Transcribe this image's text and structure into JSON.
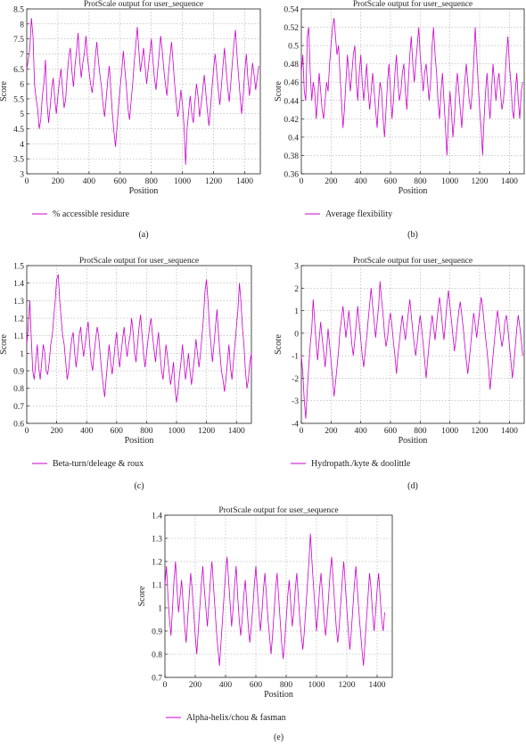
{
  "chart_data": [
    {
      "type": "line",
      "title": "ProtScale output for user_sequence",
      "xlabel": "Position",
      "ylabel": "Score",
      "xlim": [
        0,
        1500
      ],
      "ylim": [
        3,
        8.5
      ],
      "xticks": [
        "0",
        "200",
        "400",
        "600",
        "800",
        "1000",
        "1200",
        "1400"
      ],
      "yticks": [
        "3",
        "3.5",
        "4",
        "4.5",
        "5",
        "5.5",
        "6",
        "6.5",
        "7",
        "7.5",
        "8",
        "8.5"
      ],
      "grid": true,
      "legend": "% accessible residure",
      "caption": "(a)",
      "color": "#cc00cc",
      "series": [
        {
          "values_step": 10,
          "x_start": 0,
          "values": [
            6.5,
            6.8,
            7.2,
            8.2,
            7.6,
            6.0,
            5.5,
            5.2,
            4.5,
            4.8,
            5.6,
            6.0,
            6.8,
            5.4,
            4.7,
            5.2,
            5.8,
            6.2,
            5.5,
            5.0,
            5.6,
            6.1,
            6.5,
            5.8,
            5.2,
            5.5,
            6.3,
            6.9,
            7.2,
            6.4,
            5.9,
            6.6,
            7.1,
            7.7,
            6.8,
            6.2,
            6.7,
            7.0,
            7.6,
            6.9,
            6.4,
            6.0,
            5.7,
            6.2,
            6.9,
            7.4,
            6.8,
            6.3,
            5.9,
            5.3,
            4.9,
            5.5,
            6.1,
            6.6,
            5.8,
            5.0,
            4.4,
            3.9,
            4.6,
            5.3,
            5.9,
            6.4,
            7.1,
            6.5,
            5.9,
            5.2,
            4.8,
            5.4,
            6.0,
            6.7,
            7.3,
            7.9,
            7.1,
            6.4,
            6.8,
            7.2,
            6.6,
            6.0,
            6.5,
            7.0,
            7.5,
            6.8,
            6.2,
            5.8,
            6.4,
            7.0,
            7.6,
            7.1,
            6.5,
            6.0,
            5.6,
            6.3,
            6.9,
            7.4,
            6.7,
            6.0,
            5.4,
            4.9,
            5.2,
            5.8,
            5.3,
            4.6,
            3.3,
            4.5,
            5.1,
            5.6,
            5.0,
            4.7,
            5.4,
            6.0,
            5.6,
            4.9,
            5.3,
            5.8,
            6.3,
            5.7,
            5.1,
            4.6,
            5.2,
            5.9,
            6.5,
            7.0,
            6.4,
            5.8,
            5.3,
            5.9,
            6.6,
            7.2,
            6.5,
            5.9,
            5.4,
            6.0,
            6.7,
            7.3,
            7.8,
            7.0,
            6.3,
            5.6,
            5.0,
            5.6,
            6.4,
            7.0,
            6.2,
            5.6,
            6.1,
            6.7,
            6.3,
            5.8,
            6.2,
            6.6
          ]
        }
      ]
    },
    {
      "type": "line",
      "title": "ProtScale output for user_sequence",
      "xlabel": "Position",
      "ylabel": "Score",
      "xlim": [
        0,
        1500
      ],
      "ylim": [
        0.36,
        0.54
      ],
      "xticks": [
        "0",
        "200",
        "400",
        "600",
        "800",
        "1000",
        "1200",
        "1400"
      ],
      "yticks": [
        "0.36",
        "0.38",
        "0.4",
        "0.42",
        "0.44",
        "0.46",
        "0.48",
        "0.5",
        "0.52",
        "0.54"
      ],
      "grid": true,
      "legend": "Average flexibility",
      "caption": "(b)",
      "color": "#cc00cc",
      "series": [
        {
          "values_step": 10,
          "x_start": 0,
          "values": [
            0.47,
            0.49,
            0.45,
            0.44,
            0.51,
            0.52,
            0.47,
            0.44,
            0.46,
            0.45,
            0.42,
            0.44,
            0.47,
            0.45,
            0.43,
            0.42,
            0.44,
            0.46,
            0.45,
            0.48,
            0.5,
            0.52,
            0.53,
            0.51,
            0.49,
            0.5,
            0.47,
            0.44,
            0.41,
            0.43,
            0.46,
            0.49,
            0.47,
            0.45,
            0.47,
            0.49,
            0.5,
            0.46,
            0.44,
            0.47,
            0.49,
            0.46,
            0.44,
            0.46,
            0.48,
            0.45,
            0.43,
            0.45,
            0.47,
            0.45,
            0.43,
            0.41,
            0.44,
            0.46,
            0.45,
            0.42,
            0.4,
            0.43,
            0.46,
            0.48,
            0.45,
            0.42,
            0.44,
            0.47,
            0.49,
            0.46,
            0.44,
            0.45,
            0.47,
            0.48,
            0.45,
            0.43,
            0.46,
            0.49,
            0.51,
            0.48,
            0.46,
            0.48,
            0.5,
            0.52,
            0.49,
            0.47,
            0.45,
            0.47,
            0.48,
            0.46,
            0.44,
            0.46,
            0.5,
            0.52,
            0.49,
            0.47,
            0.44,
            0.42,
            0.45,
            0.47,
            0.44,
            0.41,
            0.38,
            0.42,
            0.45,
            0.43,
            0.4,
            0.42,
            0.45,
            0.47,
            0.45,
            0.43,
            0.41,
            0.44,
            0.46,
            0.48,
            0.46,
            0.44,
            0.43,
            0.45,
            0.48,
            0.52,
            0.49,
            0.46,
            0.43,
            0.41,
            0.38,
            0.42,
            0.45,
            0.47,
            0.44,
            0.42,
            0.45,
            0.48,
            0.46,
            0.44,
            0.46,
            0.47,
            0.45,
            0.43,
            0.44,
            0.46,
            0.49,
            0.51,
            0.48,
            0.46,
            0.43,
            0.42,
            0.45,
            0.47,
            0.44,
            0.42,
            0.45,
            0.46
          ]
        }
      ]
    },
    {
      "type": "line",
      "title": "ProtScale output for user_sequence",
      "xlabel": "Position",
      "ylabel": "Score",
      "xlim": [
        0,
        1500
      ],
      "ylim": [
        0.6,
        1.5
      ],
      "xticks": [
        "0",
        "200",
        "400",
        "600",
        "800",
        "1000",
        "1200",
        "1400"
      ],
      "yticks": [
        "0.6",
        "0.7",
        "0.8",
        "0.9",
        "1",
        "1.1",
        "1.2",
        "1.3",
        "1.4",
        "1.5"
      ],
      "grid": true,
      "legend": "Beta-turn/deleage & roux",
      "caption": "(c)",
      "color": "#cc00cc",
      "series": [
        {
          "values_step": 10,
          "x_start": 0,
          "values": [
            1.05,
            1.15,
            1.3,
            1.1,
            0.9,
            0.85,
            0.95,
            1.05,
            0.92,
            0.85,
            0.95,
            1.05,
            1.0,
            0.9,
            0.88,
            0.95,
            1.05,
            1.1,
            1.2,
            1.3,
            1.42,
            1.45,
            1.3,
            1.2,
            1.1,
            1.05,
            0.95,
            0.85,
            0.9,
            1.0,
            1.08,
            1.12,
            1.0,
            0.92,
            1.0,
            1.1,
            1.15,
            1.05,
            0.98,
            1.05,
            1.12,
            1.18,
            1.05,
            0.95,
            0.9,
            1.0,
            1.08,
            1.15,
            1.1,
            1.0,
            0.9,
            0.82,
            0.75,
            0.85,
            0.95,
            1.05,
            0.95,
            0.88,
            0.95,
            1.05,
            1.12,
            1.0,
            0.92,
            1.0,
            1.08,
            1.15,
            1.05,
            0.98,
            1.05,
            1.1,
            1.2,
            1.12,
            1.0,
            0.95,
            1.05,
            1.15,
            1.22,
            1.1,
            1.0,
            0.92,
            1.0,
            1.08,
            1.15,
            1.2,
            1.1,
            1.02,
            0.95,
            1.05,
            1.12,
            1.0,
            0.9,
            0.85,
            0.95,
            1.05,
            0.98,
            0.9,
            0.82,
            0.88,
            0.95,
            0.8,
            0.72,
            0.78,
            0.88,
            0.95,
            1.05,
            0.95,
            0.85,
            0.92,
            1.0,
            0.9,
            0.82,
            0.9,
            0.98,
            1.08,
            1.0,
            0.92,
            1.0,
            1.1,
            1.2,
            1.35,
            1.42,
            1.3,
            1.15,
            1.05,
            0.95,
            1.05,
            1.15,
            1.25,
            1.12,
            1.0,
            0.9,
            0.85,
            0.78,
            0.85,
            0.95,
            1.05,
            0.92,
            0.85,
            0.95,
            1.05,
            1.15,
            1.25,
            1.4,
            1.3,
            1.15,
            1.05,
            0.9,
            0.8,
            0.85,
            0.95,
            1.0,
            0.92
          ]
        }
      ]
    },
    {
      "type": "line",
      "title": "ProtScale output for user_sequence",
      "xlabel": "Position",
      "ylabel": "Score",
      "xlim": [
        0,
        1500
      ],
      "ylim": [
        -4,
        3
      ],
      "xticks": [
        "0",
        "200",
        "400",
        "600",
        "800",
        "1000",
        "1200",
        "1400"
      ],
      "yticks": [
        "-4",
        "-3",
        "-2",
        "-1",
        "0",
        "1",
        "2",
        "3"
      ],
      "grid": true,
      "legend": "Hydropath./kyte & doolittle",
      "caption": "(d)",
      "color": "#cc00cc",
      "series": [
        {
          "values_step": 10,
          "x_start": 0,
          "values": [
            -1.0,
            -1.8,
            -3.0,
            -3.8,
            -2.5,
            -1.5,
            -0.5,
            0.2,
            1.5,
            0.5,
            -0.5,
            -1.2,
            -0.3,
            0.5,
            -0.2,
            -0.8,
            -1.5,
            -0.8,
            0.2,
            -0.5,
            -1.2,
            -2.0,
            -2.8,
            -2.2,
            -1.5,
            -0.8,
            0.1,
            0.6,
            1.2,
            0.5,
            -0.2,
            0.4,
            1.0,
            0.3,
            -0.5,
            -1.0,
            -0.3,
            0.5,
            1.2,
            0.4,
            -0.3,
            -1.0,
            -1.5,
            -0.8,
            -0.2,
            0.6,
            1.3,
            2.0,
            1.2,
            0.5,
            -0.2,
            0.5,
            1.2,
            2.3,
            1.5,
            0.8,
            0.0,
            -0.6,
            -0.2,
            0.5,
            0.9,
            0.3,
            -0.4,
            -1.0,
            -1.8,
            -1.0,
            -0.4,
            0.3,
            0.8,
            0.2,
            -0.3,
            0.3,
            0.9,
            1.5,
            0.8,
            0.1,
            -0.5,
            -1.0,
            -0.4,
            0.3,
            0.8,
            0.2,
            -0.5,
            -1.2,
            -2.0,
            -1.2,
            -0.5,
            0.2,
            0.8,
            0.3,
            -0.3,
            0.4,
            1.0,
            1.6,
            1.0,
            0.3,
            -0.3,
            0.5,
            1.3,
            1.9,
            1.2,
            0.6,
            -0.1,
            -0.8,
            -0.3,
            0.4,
            1.0,
            1.4,
            0.8,
            0.2,
            -0.5,
            -1.2,
            -1.8,
            -1.2,
            -0.5,
            0.2,
            0.9,
            0.4,
            -0.2,
            0.4,
            1.0,
            1.6,
            1.2,
            0.5,
            -0.2,
            -0.8,
            -1.5,
            -2.5,
            -1.8,
            -1.0,
            -0.3,
            0.4,
            1.0,
            0.5,
            -0.1,
            -0.6,
            -0.2,
            0.5,
            0.8,
            0.2,
            -0.5,
            -1.2,
            -2.0,
            -1.4,
            -0.6,
            0.2,
            0.8,
            0.3,
            -0.3,
            -1.0
          ]
        }
      ]
    },
    {
      "type": "line",
      "title": "ProtScale output for user_sequence",
      "xlabel": "Position",
      "ylabel": "Score",
      "xlim": [
        0,
        1500
      ],
      "ylim": [
        0.7,
        1.4
      ],
      "xticks": [
        "0",
        "200",
        "400",
        "600",
        "800",
        "1000",
        "1200",
        "1400"
      ],
      "yticks": [
        "0.7",
        "0.8",
        "0.9",
        "1",
        "1.1",
        "1.2",
        "1.3",
        "1.4"
      ],
      "grid": true,
      "legend": "Alpha-helix/chou & fasman",
      "caption": "(e)",
      "color": "#cc00cc",
      "series": [
        {
          "values_step": 10,
          "x_start": 0,
          "values": [
            1.1,
            1.18,
            1.05,
            0.95,
            0.88,
            1.0,
            1.12,
            1.2,
            1.08,
            0.98,
            1.05,
            1.12,
            1.02,
            0.92,
            0.85,
            0.95,
            1.05,
            1.15,
            1.08,
            0.98,
            0.88,
            0.8,
            0.9,
            1.0,
            1.1,
            1.18,
            1.08,
            1.0,
            0.92,
            1.02,
            1.12,
            1.2,
            1.1,
            1.0,
            0.9,
            0.82,
            0.75,
            0.85,
            0.95,
            1.05,
            1.15,
            1.22,
            1.12,
            1.02,
            0.92,
            1.0,
            1.1,
            1.18,
            1.05,
            0.95,
            0.88,
            0.95,
            1.05,
            1.12,
            1.02,
            0.92,
            0.85,
            0.92,
            1.0,
            1.1,
            1.18,
            1.08,
            0.98,
            0.9,
            0.98,
            1.08,
            1.15,
            1.05,
            0.95,
            0.88,
            0.8,
            0.88,
            0.98,
            1.08,
            1.15,
            1.05,
            0.95,
            0.85,
            0.78,
            0.85,
            0.95,
            1.05,
            1.12,
            1.02,
            0.92,
            0.98,
            1.08,
            1.15,
            1.05,
            0.95,
            0.88,
            0.82,
            0.9,
            1.0,
            1.1,
            1.2,
            1.32,
            1.2,
            1.1,
            1.0,
            0.9,
            0.98,
            1.08,
            1.15,
            1.05,
            0.95,
            0.88,
            0.95,
            1.05,
            1.15,
            1.22,
            1.12,
            1.02,
            0.92,
            0.85,
            0.92,
            1.02,
            1.12,
            1.2,
            1.1,
            1.0,
            0.9,
            0.82,
            0.9,
            1.0,
            1.1,
            1.18,
            1.08,
            0.98,
            0.9,
            0.82,
            0.75,
            0.85,
            0.95,
            1.05,
            1.15,
            1.08,
            0.98,
            0.9,
            0.98,
            1.08,
            1.15,
            1.05,
            0.95,
            0.9,
            0.98
          ]
        }
      ]
    }
  ]
}
